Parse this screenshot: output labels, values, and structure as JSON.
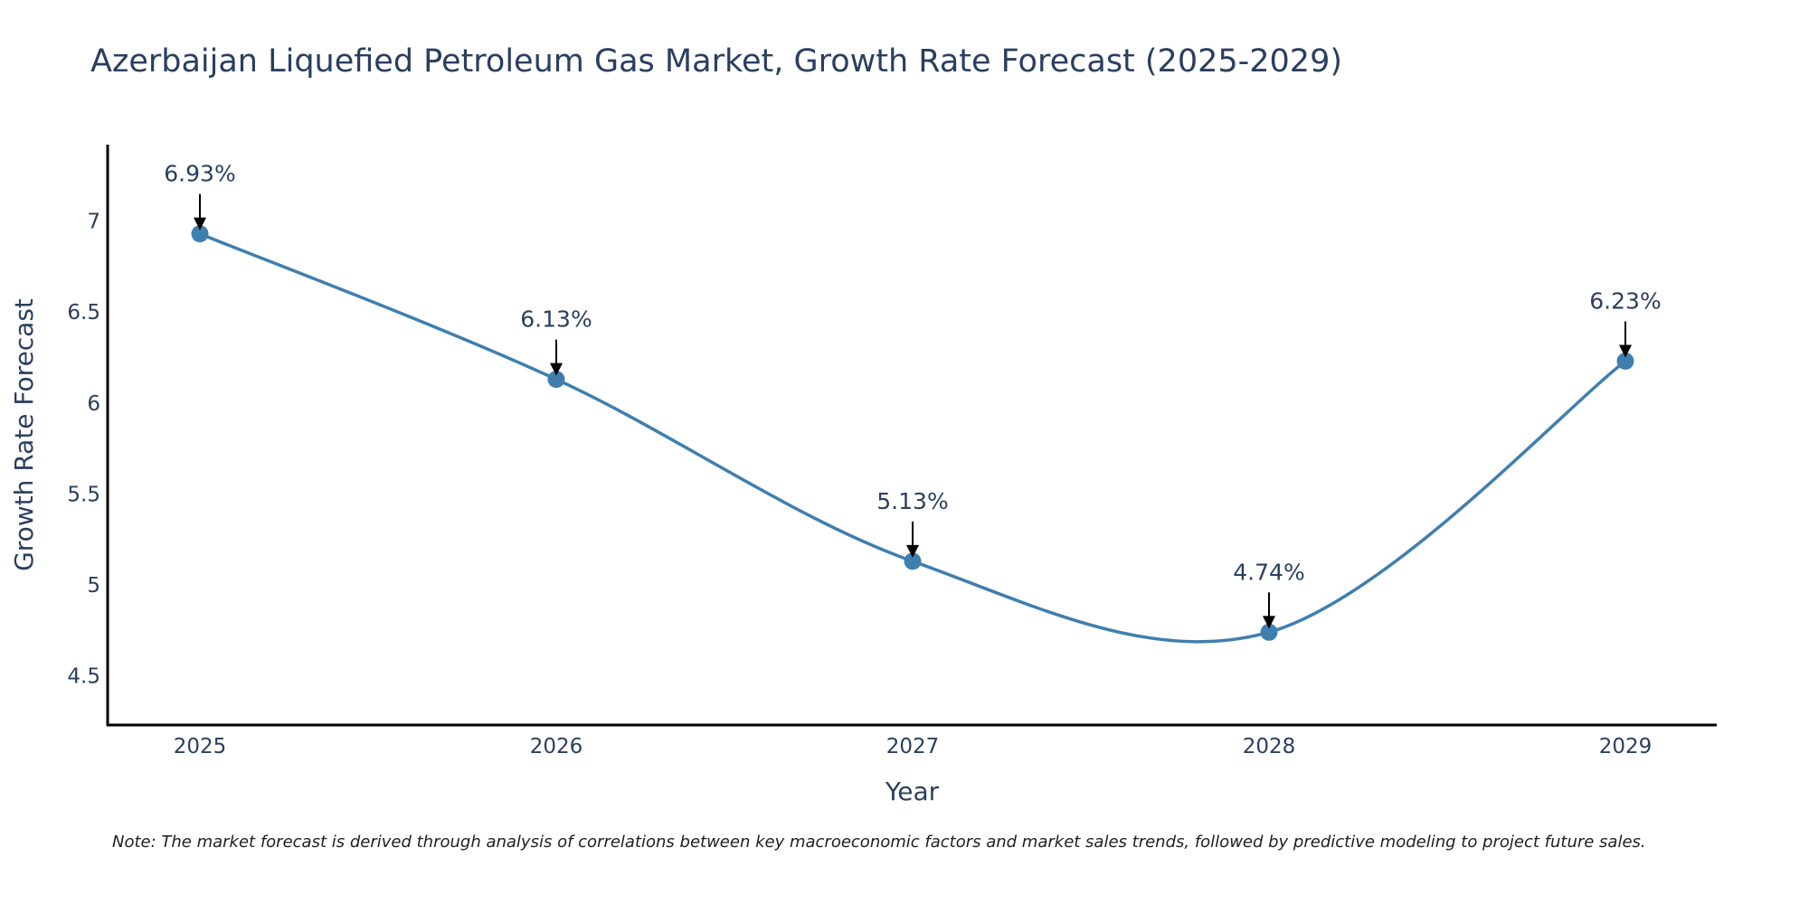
{
  "chart_data": {
    "type": "line",
    "title": "Azerbaijan Liquefied Petroleum Gas Market, Growth Rate Forecast (2025-2029)",
    "xlabel": "Year",
    "ylabel": "Growth Rate Forecast",
    "categories": [
      "2025",
      "2026",
      "2027",
      "2028",
      "2029"
    ],
    "series": [
      {
        "name": "Growth Rate Forecast",
        "values": [
          6.93,
          6.13,
          5.13,
          4.74,
          6.23
        ],
        "labels": [
          "6.93%",
          "6.13%",
          "5.13%",
          "4.74%",
          "6.23%"
        ],
        "color": "#3f7fae",
        "line_shape": "spline"
      }
    ],
    "yticks": [
      4.5,
      5,
      5.5,
      6,
      6.5,
      7
    ],
    "ytick_labels": [
      "4.5",
      "5",
      "5.5",
      "6",
      "6.5",
      "7"
    ],
    "ylim": [
      4.23,
      7.42
    ],
    "grid": false,
    "annotations": "arrow-labels above each point"
  },
  "note": "Note: The market forecast is derived through analysis of correlations between key macroeconomic factors and market sales trends, followed by predictive modeling to project future sales."
}
